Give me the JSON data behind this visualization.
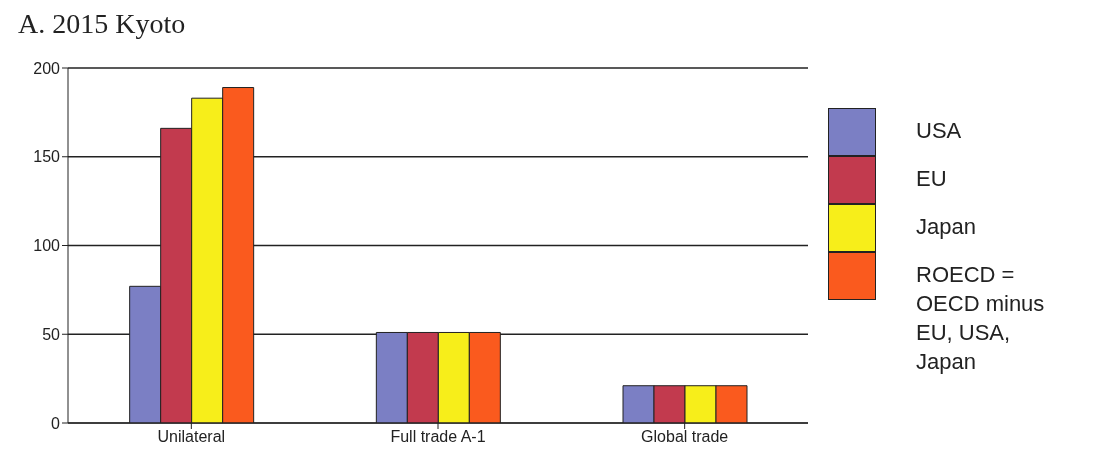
{
  "chart_data": {
    "type": "bar",
    "title": "A. 2015 Kyoto",
    "categories": [
      "Unilateral",
      "Full trade A-1",
      "Global trade"
    ],
    "series": [
      {
        "name": "USA",
        "color": "#7b7fc4",
        "values": [
          77,
          51,
          21
        ]
      },
      {
        "name": "EU",
        "color": "#c23a4e",
        "values": [
          166,
          51,
          21
        ]
      },
      {
        "name": "Japan",
        "color": "#f7ee1a",
        "values": [
          183,
          51,
          21
        ]
      },
      {
        "name": "ROECD =\nOECD minus\nEU, USA,\nJapan",
        "color": "#fa5a1e",
        "values": [
          189,
          51,
          21
        ]
      }
    ],
    "ylim": [
      0,
      200
    ],
    "yticks": [
      0,
      50,
      100,
      150,
      200
    ],
    "grid": "y",
    "legend": "right"
  }
}
